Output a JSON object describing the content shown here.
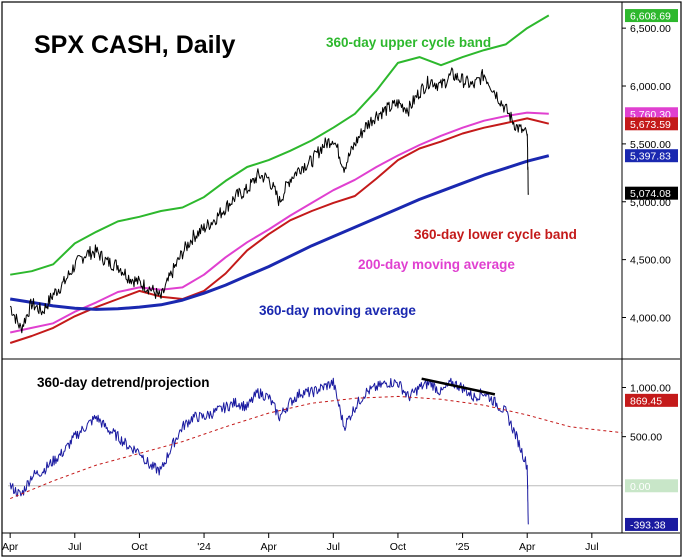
{
  "chart_data": {
    "type": "line",
    "title": "SPX CASH, Daily",
    "x_axis": {
      "tick_labels": [
        "Apr",
        "Jul",
        "Oct",
        "'24",
        "Apr",
        "Jul",
        "Oct",
        "'25",
        "Apr",
        "Jul"
      ],
      "tick_index": [
        0,
        3,
        6,
        9,
        12,
        15,
        18,
        21,
        24,
        27
      ],
      "range_months": [
        -0.1,
        28.4
      ]
    },
    "top_panel": {
      "ylim": [
        3650,
        6700
      ],
      "tick_labels": [
        "6,500.00",
        "6,000.00",
        "5,500.00",
        "5,000.00",
        "4,500.00",
        "4,000.00"
      ],
      "tick_values": [
        6500,
        6000,
        5500,
        5000,
        4500,
        4000
      ],
      "series": [
        {
          "name": "360-day upper cycle band",
          "color": "#2db82d",
          "x": [
            0,
            1,
            2,
            3,
            4,
            5,
            6,
            7,
            8,
            9,
            10,
            11,
            12,
            13,
            14,
            15,
            16,
            17,
            18,
            19,
            20,
            21,
            22,
            23,
            24,
            25
          ],
          "y": [
            4370,
            4400,
            4460,
            4640,
            4740,
            4830,
            4870,
            4920,
            4950,
            5040,
            5180,
            5300,
            5360,
            5440,
            5530,
            5640,
            5760,
            5960,
            6200,
            6250,
            6180,
            6250,
            6310,
            6360,
            6500,
            6610
          ]
        },
        {
          "name": "360-day lower cycle band",
          "color": "#c41a1a",
          "x": [
            0,
            1,
            2,
            3,
            4,
            5,
            6,
            7,
            8,
            9,
            10,
            11,
            12,
            13,
            14,
            15,
            16,
            17,
            18,
            19,
            20,
            21,
            22,
            23,
            24,
            25
          ],
          "y": [
            3780,
            3840,
            3910,
            4010,
            4090,
            4160,
            4230,
            4180,
            4160,
            4230,
            4380,
            4580,
            4720,
            4840,
            4920,
            4990,
            5050,
            5200,
            5360,
            5460,
            5520,
            5590,
            5640,
            5680,
            5720,
            5674
          ]
        },
        {
          "name": "200-day moving average",
          "color": "#e040d0",
          "x": [
            0,
            1,
            2,
            3,
            4,
            5,
            6,
            7,
            8,
            9,
            10,
            11,
            12,
            13,
            14,
            15,
            16,
            17,
            18,
            19,
            20,
            21,
            22,
            23,
            24,
            25
          ],
          "y": [
            3870,
            3910,
            3950,
            4050,
            4130,
            4220,
            4260,
            4240,
            4260,
            4370,
            4520,
            4650,
            4760,
            4880,
            4990,
            5100,
            5190,
            5300,
            5400,
            5490,
            5570,
            5640,
            5700,
            5740,
            5770,
            5760
          ]
        },
        {
          "name": "360-day moving average",
          "color": "#1a28b0",
          "x": [
            0,
            1,
            2,
            3,
            4,
            5,
            6,
            7,
            8,
            9,
            10,
            11,
            12,
            13,
            14,
            15,
            16,
            17,
            18,
            19,
            20,
            21,
            22,
            23,
            24,
            25
          ],
          "y": [
            4160,
            4130,
            4100,
            4080,
            4070,
            4075,
            4090,
            4110,
            4150,
            4210,
            4280,
            4360,
            4440,
            4530,
            4620,
            4700,
            4780,
            4860,
            4940,
            5020,
            5090,
            5160,
            5230,
            5290,
            5350,
            5398
          ]
        },
        {
          "name": "SPX",
          "color": "#000000",
          "x": [
            0,
            0.5,
            1,
            1.5,
            2,
            2.5,
            3,
            3.5,
            4,
            4.5,
            5,
            5.5,
            6,
            6.5,
            7,
            7.5,
            8,
            8.5,
            9,
            9.5,
            10,
            10.5,
            11,
            11.5,
            12,
            12.5,
            13,
            13.5,
            14,
            14.5,
            15,
            15.5,
            16,
            16.5,
            17,
            17.5,
            18,
            18.5,
            19,
            19.5,
            20,
            20.5,
            21,
            21.5,
            22,
            22.5,
            23,
            23.5,
            24,
            24.05
          ],
          "y": [
            4100,
            3900,
            4120,
            4050,
            4200,
            4300,
            4450,
            4550,
            4570,
            4480,
            4450,
            4350,
            4300,
            4250,
            4170,
            4380,
            4560,
            4700,
            4770,
            4850,
            4950,
            5050,
            5100,
            5230,
            5200,
            5000,
            5200,
            5300,
            5350,
            5480,
            5550,
            5300,
            5500,
            5650,
            5750,
            5800,
            5850,
            5800,
            5950,
            6050,
            6000,
            6100,
            6050,
            6000,
            6100,
            5950,
            5800,
            5650,
            5580,
            5074
          ]
        }
      ],
      "value_tags": [
        {
          "label": "6,608.69",
          "value": 6608.69,
          "bg": "#2db82d",
          "fg": "#ffffff"
        },
        {
          "label": "5,760.30",
          "value": 5760.3,
          "bg": "#e040d0",
          "fg": "#ffffff"
        },
        {
          "label": "5,673.59",
          "value": 5673.59,
          "bg": "#c41a1a",
          "fg": "#ffffff"
        },
        {
          "label": "5,397.83",
          "value": 5397.83,
          "bg": "#1a28b0",
          "fg": "#ffffff"
        },
        {
          "label": "5,074.08",
          "value": 5074.08,
          "bg": "#000000",
          "fg": "#ffffff"
        }
      ]
    },
    "bottom_panel": {
      "label": "360-day detrend/projection",
      "ylim": [
        -450,
        1280
      ],
      "tick_labels": [
        "1,000.00",
        "500.00"
      ],
      "tick_values": [
        1000,
        500
      ],
      "zero_line_color": "#bbbbbb",
      "series": [
        {
          "name": "360-day detrend/projection",
          "color": "#1a1aa0",
          "x": [
            0,
            0.5,
            1,
            1.5,
            2,
            2.5,
            3,
            3.5,
            4,
            4.5,
            5,
            5.5,
            6,
            6.5,
            7,
            7.5,
            8,
            8.5,
            9,
            9.5,
            10,
            10.5,
            11,
            11.5,
            12,
            12.5,
            13,
            13.5,
            14,
            14.5,
            15,
            15.5,
            16,
            16.5,
            17,
            17.5,
            18,
            18.5,
            19,
            19.5,
            20,
            20.5,
            21,
            21.5,
            22,
            22.5,
            23,
            23.5,
            24,
            24.05
          ],
          "y": [
            0,
            -100,
            100,
            150,
            250,
            350,
            500,
            600,
            700,
            580,
            500,
            400,
            350,
            200,
            150,
            400,
            600,
            700,
            700,
            750,
            800,
            850,
            800,
            950,
            900,
            700,
            850,
            950,
            950,
            1000,
            1050,
            600,
            800,
            950,
            1000,
            1050,
            1050,
            900,
            1000,
            1050,
            950,
            1050,
            1000,
            900,
            950,
            850,
            750,
            500,
            200,
            -393
          ]
        },
        {
          "name": "projection",
          "color": "#c41a1a",
          "dashed": true,
          "x": [
            0,
            2,
            4,
            6,
            8,
            10,
            12,
            14,
            16,
            18,
            20,
            22,
            24,
            26,
            28.4
          ],
          "y": [
            -130,
            50,
            210,
            330,
            450,
            600,
            740,
            840,
            890,
            910,
            880,
            820,
            720,
            600,
            540
          ]
        }
      ],
      "trendline": {
        "color": "#000000",
        "x": [
          19.1,
          22.5
        ],
        "y": [
          1090,
          930
        ]
      },
      "value_tags": [
        {
          "label": "1,000.00",
          "value": 1000
        },
        {
          "label": "869.45",
          "value": 869.45,
          "bg": "#c41a1a",
          "fg": "#ffffff"
        },
        {
          "label": "0.00",
          "value": 0,
          "bg": "#c8e6c8",
          "fg": "#ffffff"
        },
        {
          "label": "-393.38",
          "value": -393.38,
          "bg": "#1a1aa0",
          "fg": "#ffffff"
        }
      ]
    }
  }
}
